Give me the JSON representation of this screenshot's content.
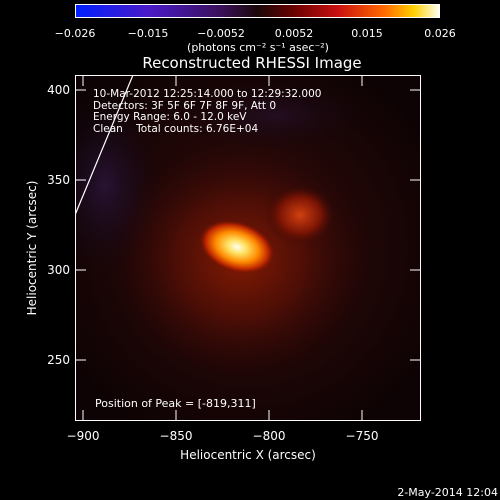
{
  "colorbar": {
    "tick_labels": [
      "−0.026",
      "−0.015",
      "−0.0052",
      "0.0052",
      "0.015",
      "0.026"
    ],
    "unit_label": "(photons cm⁻² s⁻¹ asec⁻²)"
  },
  "plot": {
    "title": "Reconstructed RHESSI Image",
    "info_lines": [
      "10-Mar-2012 12:25:14.000 to 12:29:32.000",
      "Detectors: 3F 5F 6F 7F 8F 9F, Att 0",
      "Energy Range: 6.0 - 12.0 keV",
      "Clean    Total counts: 6.76E+04"
    ],
    "peak_label": "Position of Peak = [-819,311]",
    "xlabel": "Heliocentric X (arcsec)",
    "ylabel": "Heliocentric Y (arcsec)",
    "x_ticks": [
      "−900",
      "−850",
      "−800",
      "−750"
    ],
    "y_ticks": [
      "400",
      "350",
      "300",
      "250"
    ]
  },
  "footer": {
    "timestamp": "2-May-2014 12:04"
  }
}
